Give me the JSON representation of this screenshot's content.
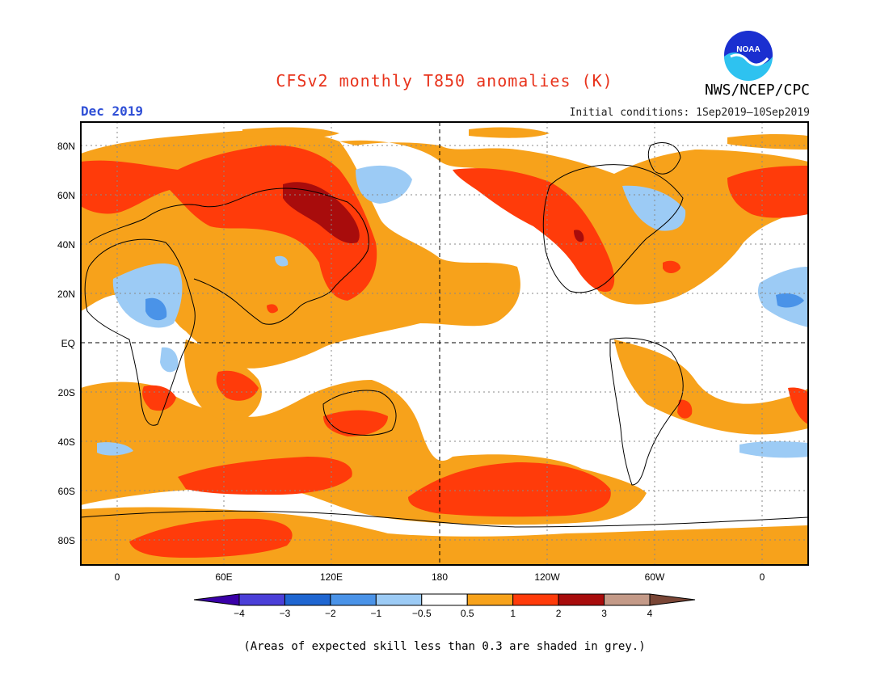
{
  "title": "CFSv2 monthly T850 anomalies (K)",
  "org_label": "NWS/NCEP/CPC",
  "logo_text": "NOAA",
  "month_label": "Dec 2019",
  "initial_conditions": "Initial conditions: 1Sep2019—10Sep2019",
  "lat_labels": [
    "80N",
    "60N",
    "40N",
    "20N",
    "EQ",
    "20S",
    "40S",
    "60S",
    "80S"
  ],
  "lon_labels": [
    "0",
    "60E",
    "120E",
    "180",
    "120W",
    "60W",
    "0"
  ],
  "legend": {
    "labels": [
      "−4",
      "−3",
      "−2",
      "−1",
      "−0.5",
      "0.5",
      "1",
      "2",
      "3",
      "4"
    ],
    "colors": [
      "#3a00a8",
      "#4b3fd8",
      "#1f66d1",
      "#4a93e8",
      "#9ccbf5",
      "#ffffff",
      "#f7a21b",
      "#ff3b0a",
      "#a80c0c",
      "#c49a88",
      "#7a4636"
    ]
  },
  "footnote": "(Areas of expected skill less than 0.3 are shaded in grey.)"
}
